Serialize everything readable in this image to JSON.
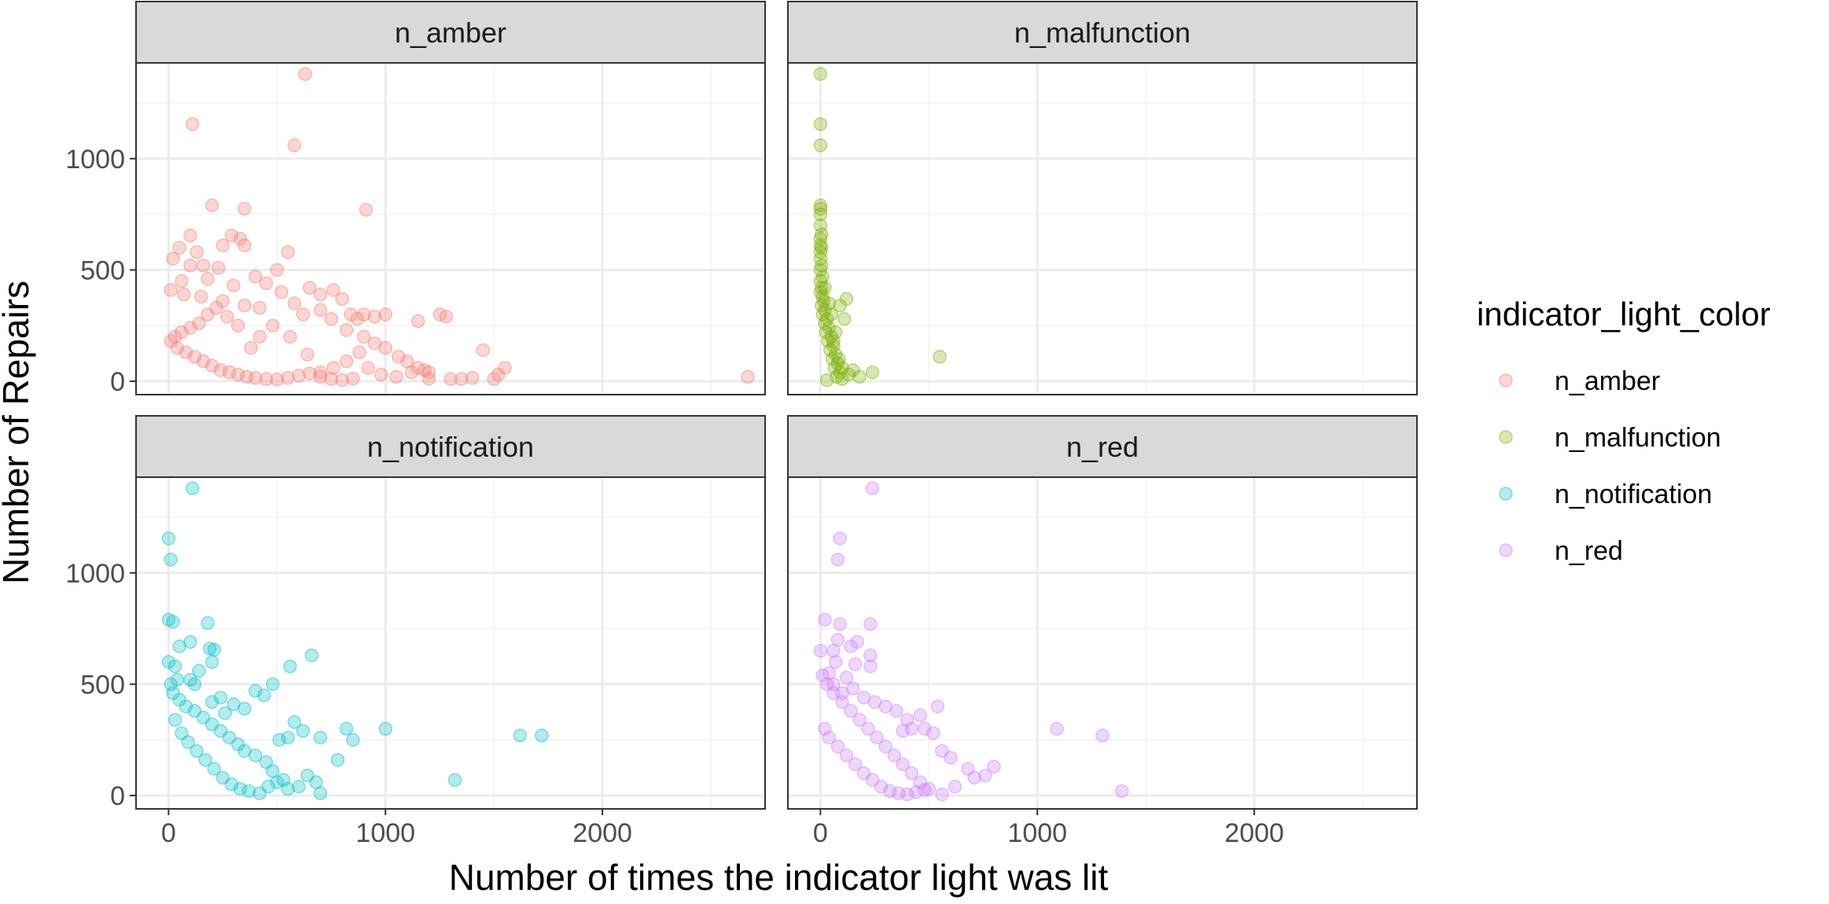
{
  "chart_data": {
    "type": "scatter",
    "xlabel": "Number of times the indicator light was lit",
    "ylabel": "Number of Repairs",
    "xlim": [
      -150,
      2750
    ],
    "ylim": [
      -60,
      1430
    ],
    "x_ticks": [
      0,
      1000,
      2000
    ],
    "y_ticks": [
      0,
      500,
      1000
    ],
    "x_tick_labels": [
      "0",
      "1000",
      "2000"
    ],
    "y_tick_labels": [
      "0",
      "500",
      "1000"
    ],
    "grid": true,
    "facet_layout": "2x2",
    "legend": {
      "title": "indicator_light_color",
      "position": "right",
      "entries": [
        "n_amber",
        "n_malfunction",
        "n_notification",
        "n_red"
      ]
    },
    "colors": {
      "n_amber": "#F8766D",
      "n_malfunction": "#7CAE00",
      "n_notification": "#00BFC4",
      "n_red": "#C77CFF"
    },
    "point_alpha": 0.3,
    "panels": [
      {
        "name": "n_amber",
        "points": [
          [
            630,
            1380
          ],
          [
            110,
            1155
          ],
          [
            580,
            1060
          ],
          [
            200,
            790
          ],
          [
            350,
            775
          ],
          [
            910,
            770
          ],
          [
            100,
            655
          ],
          [
            290,
            655
          ],
          [
            330,
            640
          ],
          [
            350,
            610
          ],
          [
            250,
            610
          ],
          [
            550,
            580
          ],
          [
            130,
            580
          ],
          [
            50,
            600
          ],
          [
            20,
            550
          ],
          [
            100,
            520
          ],
          [
            160,
            520
          ],
          [
            230,
            510
          ],
          [
            500,
            500
          ],
          [
            400,
            470
          ],
          [
            60,
            450
          ],
          [
            180,
            460
          ],
          [
            450,
            440
          ],
          [
            300,
            430
          ],
          [
            10,
            410
          ],
          [
            70,
            390
          ],
          [
            150,
            380
          ],
          [
            250,
            360
          ],
          [
            350,
            340
          ],
          [
            420,
            330
          ],
          [
            520,
            400
          ],
          [
            580,
            350
          ],
          [
            650,
            420
          ],
          [
            700,
            390
          ],
          [
            760,
            410
          ],
          [
            800,
            370
          ],
          [
            840,
            300
          ],
          [
            870,
            280
          ],
          [
            900,
            300
          ],
          [
            950,
            290
          ],
          [
            1000,
            300
          ],
          [
            1150,
            270
          ],
          [
            1250,
            300
          ],
          [
            1280,
            290
          ],
          [
            700,
            320
          ],
          [
            620,
            300
          ],
          [
            750,
            280
          ],
          [
            820,
            230
          ],
          [
            900,
            200
          ],
          [
            950,
            170
          ],
          [
            1000,
            150
          ],
          [
            1060,
            110
          ],
          [
            1100,
            90
          ],
          [
            1150,
            60
          ],
          [
            1180,
            50
          ],
          [
            1200,
            40
          ],
          [
            1300,
            10
          ],
          [
            1350,
            10
          ],
          [
            1400,
            15
          ],
          [
            1450,
            140
          ],
          [
            1500,
            10
          ],
          [
            1520,
            30
          ],
          [
            1550,
            60
          ],
          [
            2670,
            20
          ],
          [
            980,
            30
          ],
          [
            920,
            60
          ],
          [
            880,
            130
          ],
          [
            820,
            90
          ],
          [
            760,
            60
          ],
          [
            700,
            40
          ],
          [
            640,
            120
          ],
          [
            560,
            200
          ],
          [
            480,
            250
          ],
          [
            420,
            200
          ],
          [
            380,
            150
          ],
          [
            320,
            250
          ],
          [
            270,
            290
          ],
          [
            220,
            330
          ],
          [
            180,
            300
          ],
          [
            140,
            260
          ],
          [
            100,
            240
          ],
          [
            60,
            220
          ],
          [
            30,
            200
          ],
          [
            10,
            180
          ],
          [
            40,
            150
          ],
          [
            80,
            130
          ],
          [
            120,
            110
          ],
          [
            160,
            90
          ],
          [
            200,
            70
          ],
          [
            240,
            50
          ],
          [
            280,
            40
          ],
          [
            320,
            30
          ],
          [
            360,
            20
          ],
          [
            400,
            15
          ],
          [
            450,
            10
          ],
          [
            500,
            8
          ],
          [
            550,
            15
          ],
          [
            600,
            25
          ],
          [
            650,
            35
          ],
          [
            700,
            20
          ],
          [
            750,
            10
          ],
          [
            800,
            5
          ],
          [
            850,
            12
          ],
          [
            1050,
            20
          ],
          [
            1120,
            40
          ],
          [
            1200,
            12
          ]
        ]
      },
      {
        "name": "n_malfunction",
        "points": [
          [
            0,
            1380
          ],
          [
            0,
            1155
          ],
          [
            0,
            1060
          ],
          [
            0,
            790
          ],
          [
            0,
            775
          ],
          [
            0,
            750
          ],
          [
            0,
            700
          ],
          [
            5,
            660
          ],
          [
            0,
            640
          ],
          [
            0,
            610
          ],
          [
            5,
            600
          ],
          [
            0,
            580
          ],
          [
            0,
            550
          ],
          [
            5,
            520
          ],
          [
            0,
            500
          ],
          [
            10,
            470
          ],
          [
            0,
            450
          ],
          [
            5,
            420
          ],
          [
            0,
            400
          ],
          [
            10,
            380
          ],
          [
            15,
            360
          ],
          [
            5,
            340
          ],
          [
            20,
            320
          ],
          [
            10,
            300
          ],
          [
            30,
            280
          ],
          [
            20,
            260
          ],
          [
            40,
            240
          ],
          [
            25,
            220
          ],
          [
            50,
            200
          ],
          [
            35,
            180
          ],
          [
            60,
            160
          ],
          [
            45,
            140
          ],
          [
            70,
            120
          ],
          [
            55,
            100
          ],
          [
            80,
            80
          ],
          [
            65,
            60
          ],
          [
            90,
            40
          ],
          [
            75,
            20
          ],
          [
            100,
            10
          ],
          [
            30,
            5
          ],
          [
            120,
            370
          ],
          [
            90,
            340
          ],
          [
            110,
            280
          ],
          [
            70,
            220
          ],
          [
            60,
            180
          ],
          [
            550,
            110
          ],
          [
            240,
            40
          ],
          [
            150,
            50
          ],
          [
            180,
            20
          ],
          [
            130,
            30
          ],
          [
            100,
            60
          ],
          [
            85,
            100
          ],
          [
            50,
            300
          ],
          [
            40,
            350
          ],
          [
            20,
            420
          ]
        ]
      },
      {
        "name": "n_notification",
        "points": [
          [
            110,
            1380
          ],
          [
            0,
            1155
          ],
          [
            10,
            1060
          ],
          [
            0,
            790
          ],
          [
            20,
            780
          ],
          [
            180,
            775
          ],
          [
            100,
            690
          ],
          [
            50,
            670
          ],
          [
            190,
            660
          ],
          [
            210,
            655
          ],
          [
            200,
            600
          ],
          [
            0,
            600
          ],
          [
            30,
            580
          ],
          [
            660,
            630
          ],
          [
            560,
            580
          ],
          [
            140,
            560
          ],
          [
            40,
            520
          ],
          [
            100,
            520
          ],
          [
            120,
            500
          ],
          [
            400,
            470
          ],
          [
            480,
            500
          ],
          [
            440,
            450
          ],
          [
            240,
            440
          ],
          [
            200,
            420
          ],
          [
            300,
            410
          ],
          [
            350,
            390
          ],
          [
            260,
            370
          ],
          [
            580,
            330
          ],
          [
            620,
            290
          ],
          [
            550,
            260
          ],
          [
            510,
            250
          ],
          [
            700,
            260
          ],
          [
            820,
            300
          ],
          [
            850,
            250
          ],
          [
            1000,
            300
          ],
          [
            1620,
            270
          ],
          [
            1720,
            270
          ],
          [
            780,
            160
          ],
          [
            1320,
            70
          ],
          [
            640,
            90
          ],
          [
            700,
            10
          ],
          [
            680,
            60
          ],
          [
            600,
            40
          ],
          [
            530,
            70
          ],
          [
            480,
            110
          ],
          [
            450,
            150
          ],
          [
            400,
            180
          ],
          [
            350,
            200
          ],
          [
            320,
            230
          ],
          [
            280,
            260
          ],
          [
            240,
            290
          ],
          [
            200,
            320
          ],
          [
            160,
            350
          ],
          [
            120,
            380
          ],
          [
            80,
            400
          ],
          [
            50,
            430
          ],
          [
            20,
            460
          ],
          [
            10,
            500
          ],
          [
            30,
            340
          ],
          [
            60,
            280
          ],
          [
            90,
            240
          ],
          [
            130,
            200
          ],
          [
            170,
            160
          ],
          [
            210,
            120
          ],
          [
            250,
            80
          ],
          [
            290,
            50
          ],
          [
            330,
            30
          ],
          [
            370,
            20
          ],
          [
            420,
            10
          ],
          [
            460,
            40
          ],
          [
            500,
            60
          ],
          [
            550,
            30
          ]
        ]
      },
      {
        "name": "n_red",
        "points": [
          [
            240,
            1380
          ],
          [
            90,
            1155
          ],
          [
            80,
            1060
          ],
          [
            20,
            790
          ],
          [
            90,
            770
          ],
          [
            230,
            770
          ],
          [
            80,
            700
          ],
          [
            170,
            690
          ],
          [
            140,
            670
          ],
          [
            0,
            650
          ],
          [
            60,
            650
          ],
          [
            230,
            630
          ],
          [
            70,
            600
          ],
          [
            160,
            590
          ],
          [
            230,
            580
          ],
          [
            40,
            550
          ],
          [
            120,
            530
          ],
          [
            60,
            500
          ],
          [
            150,
            480
          ],
          [
            100,
            460
          ],
          [
            200,
            440
          ],
          [
            250,
            420
          ],
          [
            300,
            400
          ],
          [
            350,
            380
          ],
          [
            540,
            400
          ],
          [
            460,
            360
          ],
          [
            400,
            340
          ],
          [
            420,
            300
          ],
          [
            380,
            290
          ],
          [
            480,
            300
          ],
          [
            520,
            280
          ],
          [
            560,
            200
          ],
          [
            600,
            170
          ],
          [
            680,
            120
          ],
          [
            710,
            80
          ],
          [
            760,
            90
          ],
          [
            800,
            130
          ],
          [
            1090,
            300
          ],
          [
            1300,
            270
          ],
          [
            1390,
            20
          ],
          [
            620,
            40
          ],
          [
            560,
            5
          ],
          [
            500,
            30
          ],
          [
            460,
            60
          ],
          [
            420,
            100
          ],
          [
            380,
            140
          ],
          [
            340,
            180
          ],
          [
            300,
            220
          ],
          [
            260,
            260
          ],
          [
            220,
            300
          ],
          [
            180,
            340
          ],
          [
            140,
            380
          ],
          [
            100,
            420
          ],
          [
            60,
            460
          ],
          [
            30,
            500
          ],
          [
            10,
            540
          ],
          [
            20,
            300
          ],
          [
            40,
            260
          ],
          [
            80,
            220
          ],
          [
            120,
            180
          ],
          [
            160,
            140
          ],
          [
            200,
            100
          ],
          [
            240,
            70
          ],
          [
            280,
            40
          ],
          [
            320,
            20
          ],
          [
            360,
            10
          ],
          [
            400,
            5
          ],
          [
            440,
            15
          ],
          [
            480,
            25
          ]
        ]
      }
    ]
  }
}
